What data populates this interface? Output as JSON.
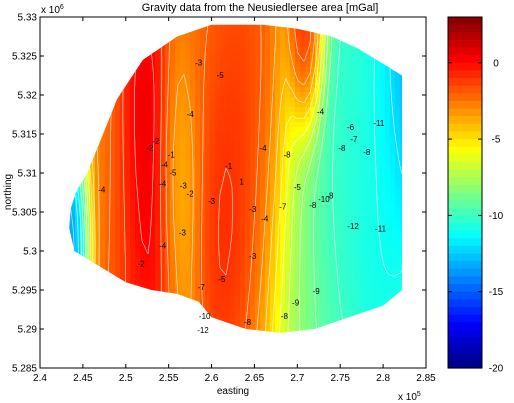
{
  "chart_data": {
    "type": "contour",
    "title": "Gravity data from the Neusiedlersee area [mGal]",
    "xlabel": "easting",
    "ylabel": "northing",
    "x_exponent_label": "x 10",
    "x_exponent_power": "5",
    "y_exponent_label": "x 10",
    "y_exponent_power": "6",
    "xlim": [
      2.4,
      2.85
    ],
    "ylim": [
      5.285,
      5.33
    ],
    "xticks": [
      "2.4",
      "2.45",
      "2.5",
      "2.55",
      "2.6",
      "2.65",
      "2.7",
      "2.75",
      "2.8",
      "2.85"
    ],
    "yticks": [
      "5.285",
      "5.29",
      "5.295",
      "5.3",
      "5.305",
      "5.31",
      "5.315",
      "5.32",
      "5.325",
      "5.33"
    ],
    "colorbar": {
      "range": [
        -20,
        3
      ],
      "ticks": [
        "0",
        "-5",
        "-10",
        "-15",
        "-20"
      ],
      "colormap": "jet"
    },
    "grid": false,
    "data_region_outline": [
      [
        2.436,
        5.3055
      ],
      [
        2.442,
        5.3075
      ],
      [
        2.455,
        5.31
      ],
      [
        2.47,
        5.314
      ],
      [
        2.49,
        5.3195
      ],
      [
        2.52,
        5.3245
      ],
      [
        2.56,
        5.3275
      ],
      [
        2.6,
        5.329
      ],
      [
        2.66,
        5.329
      ],
      [
        2.7,
        5.3285
      ],
      [
        2.74,
        5.3275
      ],
      [
        2.77,
        5.326
      ],
      [
        2.8,
        5.324
      ],
      [
        2.822,
        5.3225
      ],
      [
        2.822,
        5.295
      ],
      [
        2.8,
        5.293
      ],
      [
        2.76,
        5.2915
      ],
      [
        2.72,
        5.29
      ],
      [
        2.68,
        5.2895
      ],
      [
        2.64,
        5.29
      ],
      [
        2.6,
        5.2915
      ],
      [
        2.585,
        5.2935
      ],
      [
        2.56,
        5.2945
      ],
      [
        2.53,
        5.295
      ],
      [
        2.5,
        5.296
      ],
      [
        2.47,
        5.298
      ],
      [
        2.44,
        5.3
      ],
      [
        2.434,
        5.303
      ]
    ],
    "field_centers": [
      {
        "x": 2.525,
        "y": 5.3125,
        "value": 2,
        "sigma": 0.02
      },
      {
        "x": 2.505,
        "y": 5.2985,
        "value": 0,
        "sigma": 0.025
      },
      {
        "x": 2.625,
        "y": 5.3065,
        "value": 1,
        "sigma": 0.022
      },
      {
        "x": 2.655,
        "y": 5.303,
        "value": -3,
        "sigma": 0.025
      },
      {
        "x": 2.6,
        "y": 5.326,
        "value": -2,
        "sigma": 0.03
      },
      {
        "x": 2.71,
        "y": 5.3265,
        "value": 2,
        "sigma": 0.012
      },
      {
        "x": 2.64,
        "y": 5.318,
        "value": -1,
        "sigma": 0.025
      },
      {
        "x": 2.82,
        "y": 5.3195,
        "value": -15,
        "sigma": 0.02
      },
      {
        "x": 2.775,
        "y": 5.3215,
        "value": -11,
        "sigma": 0.02
      },
      {
        "x": 2.44,
        "y": 5.301,
        "value": -16,
        "sigma": 0.012
      },
      {
        "x": 2.74,
        "y": 5.302,
        "value": -11,
        "sigma": 0.03
      },
      {
        "x": 2.795,
        "y": 5.3,
        "value": -12,
        "sigma": 0.02
      },
      {
        "x": 2.56,
        "y": 5.3105,
        "value": -5,
        "sigma": 0.015
      },
      {
        "x": 2.7,
        "y": 5.293,
        "value": -8,
        "sigma": 0.025
      },
      {
        "x": 2.8,
        "y": 5.31,
        "value": -10,
        "sigma": 0.02
      },
      {
        "x": 2.48,
        "y": 5.305,
        "value": -3,
        "sigma": 0.02
      }
    ],
    "contour_labels": [
      {
        "x": 2.585,
        "y": 5.3238,
        "text": "-3"
      },
      {
        "x": 2.61,
        "y": 5.3222,
        "text": "-5"
      },
      {
        "x": 2.575,
        "y": 5.3172,
        "text": "-4"
      },
      {
        "x": 2.535,
        "y": 5.3137,
        "text": "-2"
      },
      {
        "x": 2.528,
        "y": 5.3128,
        "text": "-2"
      },
      {
        "x": 2.553,
        "y": 5.312,
        "text": "-1"
      },
      {
        "x": 2.545,
        "y": 5.3107,
        "text": "-4"
      },
      {
        "x": 2.555,
        "y": 5.3097,
        "text": "-5"
      },
      {
        "x": 2.472,
        "y": 5.3075,
        "text": "-4"
      },
      {
        "x": 2.543,
        "y": 5.3083,
        "text": "-4"
      },
      {
        "x": 2.567,
        "y": 5.308,
        "text": "-3"
      },
      {
        "x": 2.575,
        "y": 5.307,
        "text": "-2"
      },
      {
        "x": 2.62,
        "y": 5.3105,
        "text": "-1"
      },
      {
        "x": 2.635,
        "y": 5.3085,
        "text": "1"
      },
      {
        "x": 2.6,
        "y": 5.306,
        "text": "-3"
      },
      {
        "x": 2.66,
        "y": 5.3128,
        "text": "-4"
      },
      {
        "x": 2.688,
        "y": 5.312,
        "text": "-8"
      },
      {
        "x": 2.7,
        "y": 5.3078,
        "text": "-5"
      },
      {
        "x": 2.648,
        "y": 5.305,
        "text": "-3"
      },
      {
        "x": 2.662,
        "y": 5.3038,
        "text": "-4"
      },
      {
        "x": 2.683,
        "y": 5.3053,
        "text": "-7"
      },
      {
        "x": 2.718,
        "y": 5.3055,
        "text": "-8"
      },
      {
        "x": 2.731,
        "y": 5.3063,
        "text": "-10"
      },
      {
        "x": 2.738,
        "y": 5.3067,
        "text": "-8"
      },
      {
        "x": 2.727,
        "y": 5.3175,
        "text": "-4"
      },
      {
        "x": 2.762,
        "y": 5.3155,
        "text": "-6"
      },
      {
        "x": 2.752,
        "y": 5.3128,
        "text": "-8"
      },
      {
        "x": 2.766,
        "y": 5.314,
        "text": "-7"
      },
      {
        "x": 2.781,
        "y": 5.3123,
        "text": "-8"
      },
      {
        "x": 2.795,
        "y": 5.316,
        "text": "-11"
      },
      {
        "x": 2.566,
        "y": 5.302,
        "text": "-3"
      },
      {
        "x": 2.543,
        "y": 5.3003,
        "text": "-4"
      },
      {
        "x": 2.518,
        "y": 5.298,
        "text": "-2"
      },
      {
        "x": 2.648,
        "y": 5.299,
        "text": "-3"
      },
      {
        "x": 2.612,
        "y": 5.296,
        "text": "-5"
      },
      {
        "x": 2.588,
        "y": 5.295,
        "text": "-7"
      },
      {
        "x": 2.765,
        "y": 5.3028,
        "text": "-12"
      },
      {
        "x": 2.797,
        "y": 5.3025,
        "text": "-11"
      },
      {
        "x": 2.722,
        "y": 5.2945,
        "text": "-9"
      },
      {
        "x": 2.698,
        "y": 5.293,
        "text": "-9"
      },
      {
        "x": 2.685,
        "y": 5.2913,
        "text": "-8"
      },
      {
        "x": 2.592,
        "y": 5.2913,
        "text": "-10"
      },
      {
        "x": 2.642,
        "y": 5.2905,
        "text": "-8"
      },
      {
        "x": 2.59,
        "y": 5.2895,
        "text": "-12"
      }
    ]
  }
}
